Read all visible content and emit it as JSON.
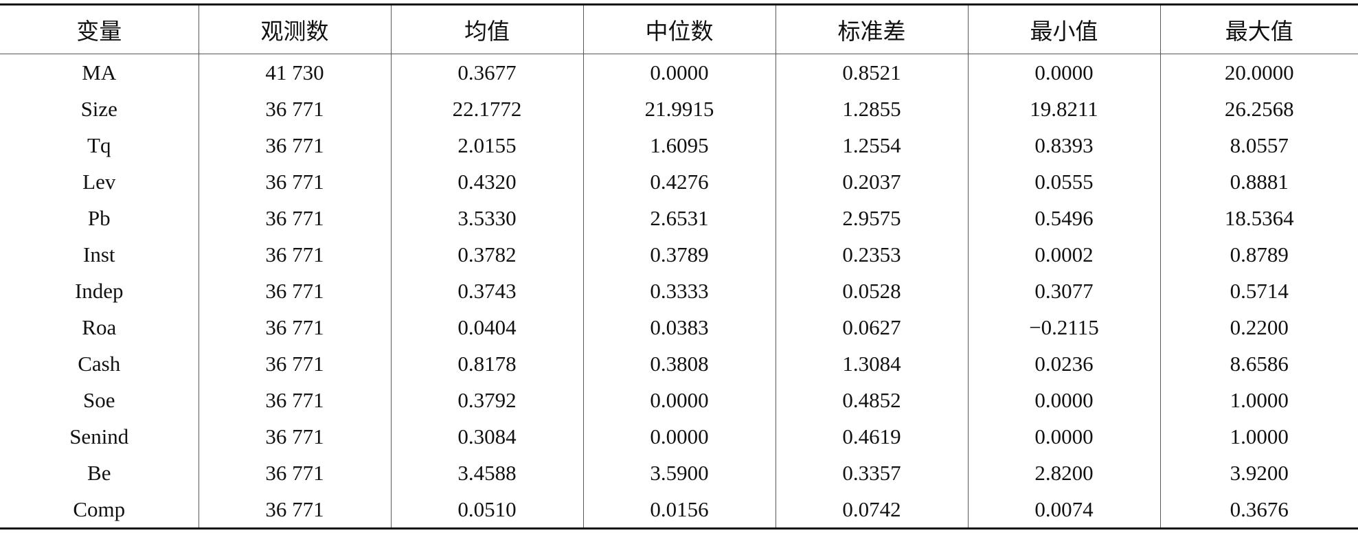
{
  "table": {
    "header": [
      "变量",
      "观测数",
      "均值",
      "中位数",
      "标准差",
      "最小值",
      "最大值"
    ],
    "rows": [
      [
        "MA",
        "41 730",
        "0.3677",
        "0.0000",
        "0.8521",
        "0.0000",
        "20.0000"
      ],
      [
        "Size",
        "36 771",
        "22.1772",
        "21.9915",
        "1.2855",
        "19.8211",
        "26.2568"
      ],
      [
        "Tq",
        "36 771",
        "2.0155",
        "1.6095",
        "1.2554",
        "0.8393",
        "8.0557"
      ],
      [
        "Lev",
        "36 771",
        "0.4320",
        "0.4276",
        "0.2037",
        "0.0555",
        "0.8881"
      ],
      [
        "Pb",
        "36 771",
        "3.5330",
        "2.6531",
        "2.9575",
        "0.5496",
        "18.5364"
      ],
      [
        "Inst",
        "36 771",
        "0.3782",
        "0.3789",
        "0.2353",
        "0.0002",
        "0.8789"
      ],
      [
        "Indep",
        "36 771",
        "0.3743",
        "0.3333",
        "0.0528",
        "0.3077",
        "0.5714"
      ],
      [
        "Roa",
        "36 771",
        "0.0404",
        "0.0383",
        "0.0627",
        "−0.2115",
        "0.2200"
      ],
      [
        "Cash",
        "36 771",
        "0.8178",
        "0.3808",
        "1.3084",
        "0.0236",
        "8.6586"
      ],
      [
        "Soe",
        "36 771",
        "0.3792",
        "0.0000",
        "0.4852",
        "0.0000",
        "1.0000"
      ],
      [
        "Senind",
        "36 771",
        "0.3084",
        "0.0000",
        "0.4619",
        "0.0000",
        "1.0000"
      ],
      [
        "Be",
        "36 771",
        "3.4588",
        "3.5900",
        "0.3357",
        "2.8200",
        "3.9200"
      ],
      [
        "Comp",
        "36 771",
        "0.0510",
        "0.0156",
        "0.0742",
        "0.0074",
        "0.3676"
      ]
    ]
  }
}
